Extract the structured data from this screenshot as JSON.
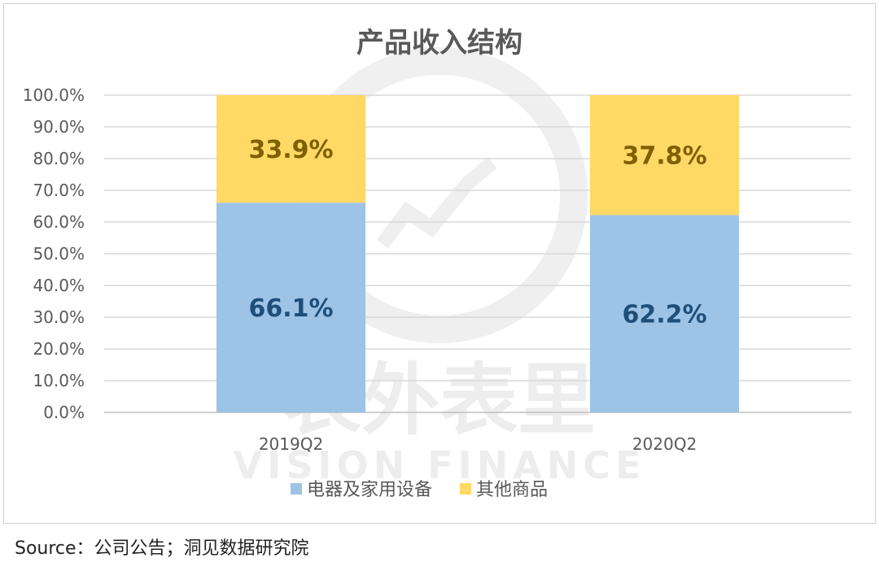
{
  "chart_data": {
    "type": "bar",
    "stacked": true,
    "title": "产品收入结构",
    "categories": [
      "2019Q2",
      "2020Q2"
    ],
    "series": [
      {
        "name": "电器及家用设备",
        "values": [
          66.1,
          62.2
        ],
        "labels": [
          "66.1%",
          "62.2%"
        ],
        "color": "#9dc3e6",
        "label_color": "#1f4e79"
      },
      {
        "name": "其他商品",
        "values": [
          33.9,
          37.8
        ],
        "labels": [
          "33.9%",
          "37.8%"
        ],
        "color": "#ffd966",
        "label_color": "#7f6000"
      }
    ],
    "ylim": [
      0,
      100
    ],
    "yticks": [
      "0.0%",
      "10.0%",
      "20.0%",
      "30.0%",
      "40.0%",
      "50.0%",
      "60.0%",
      "70.0%",
      "80.0%",
      "90.0%",
      "100.0%"
    ],
    "grid": true,
    "legend_position": "bottom"
  },
  "watermark": {
    "cn": "表外表里",
    "en": "VISION FINANCE"
  },
  "source": "Source：公司公告；洞见数据研究院"
}
